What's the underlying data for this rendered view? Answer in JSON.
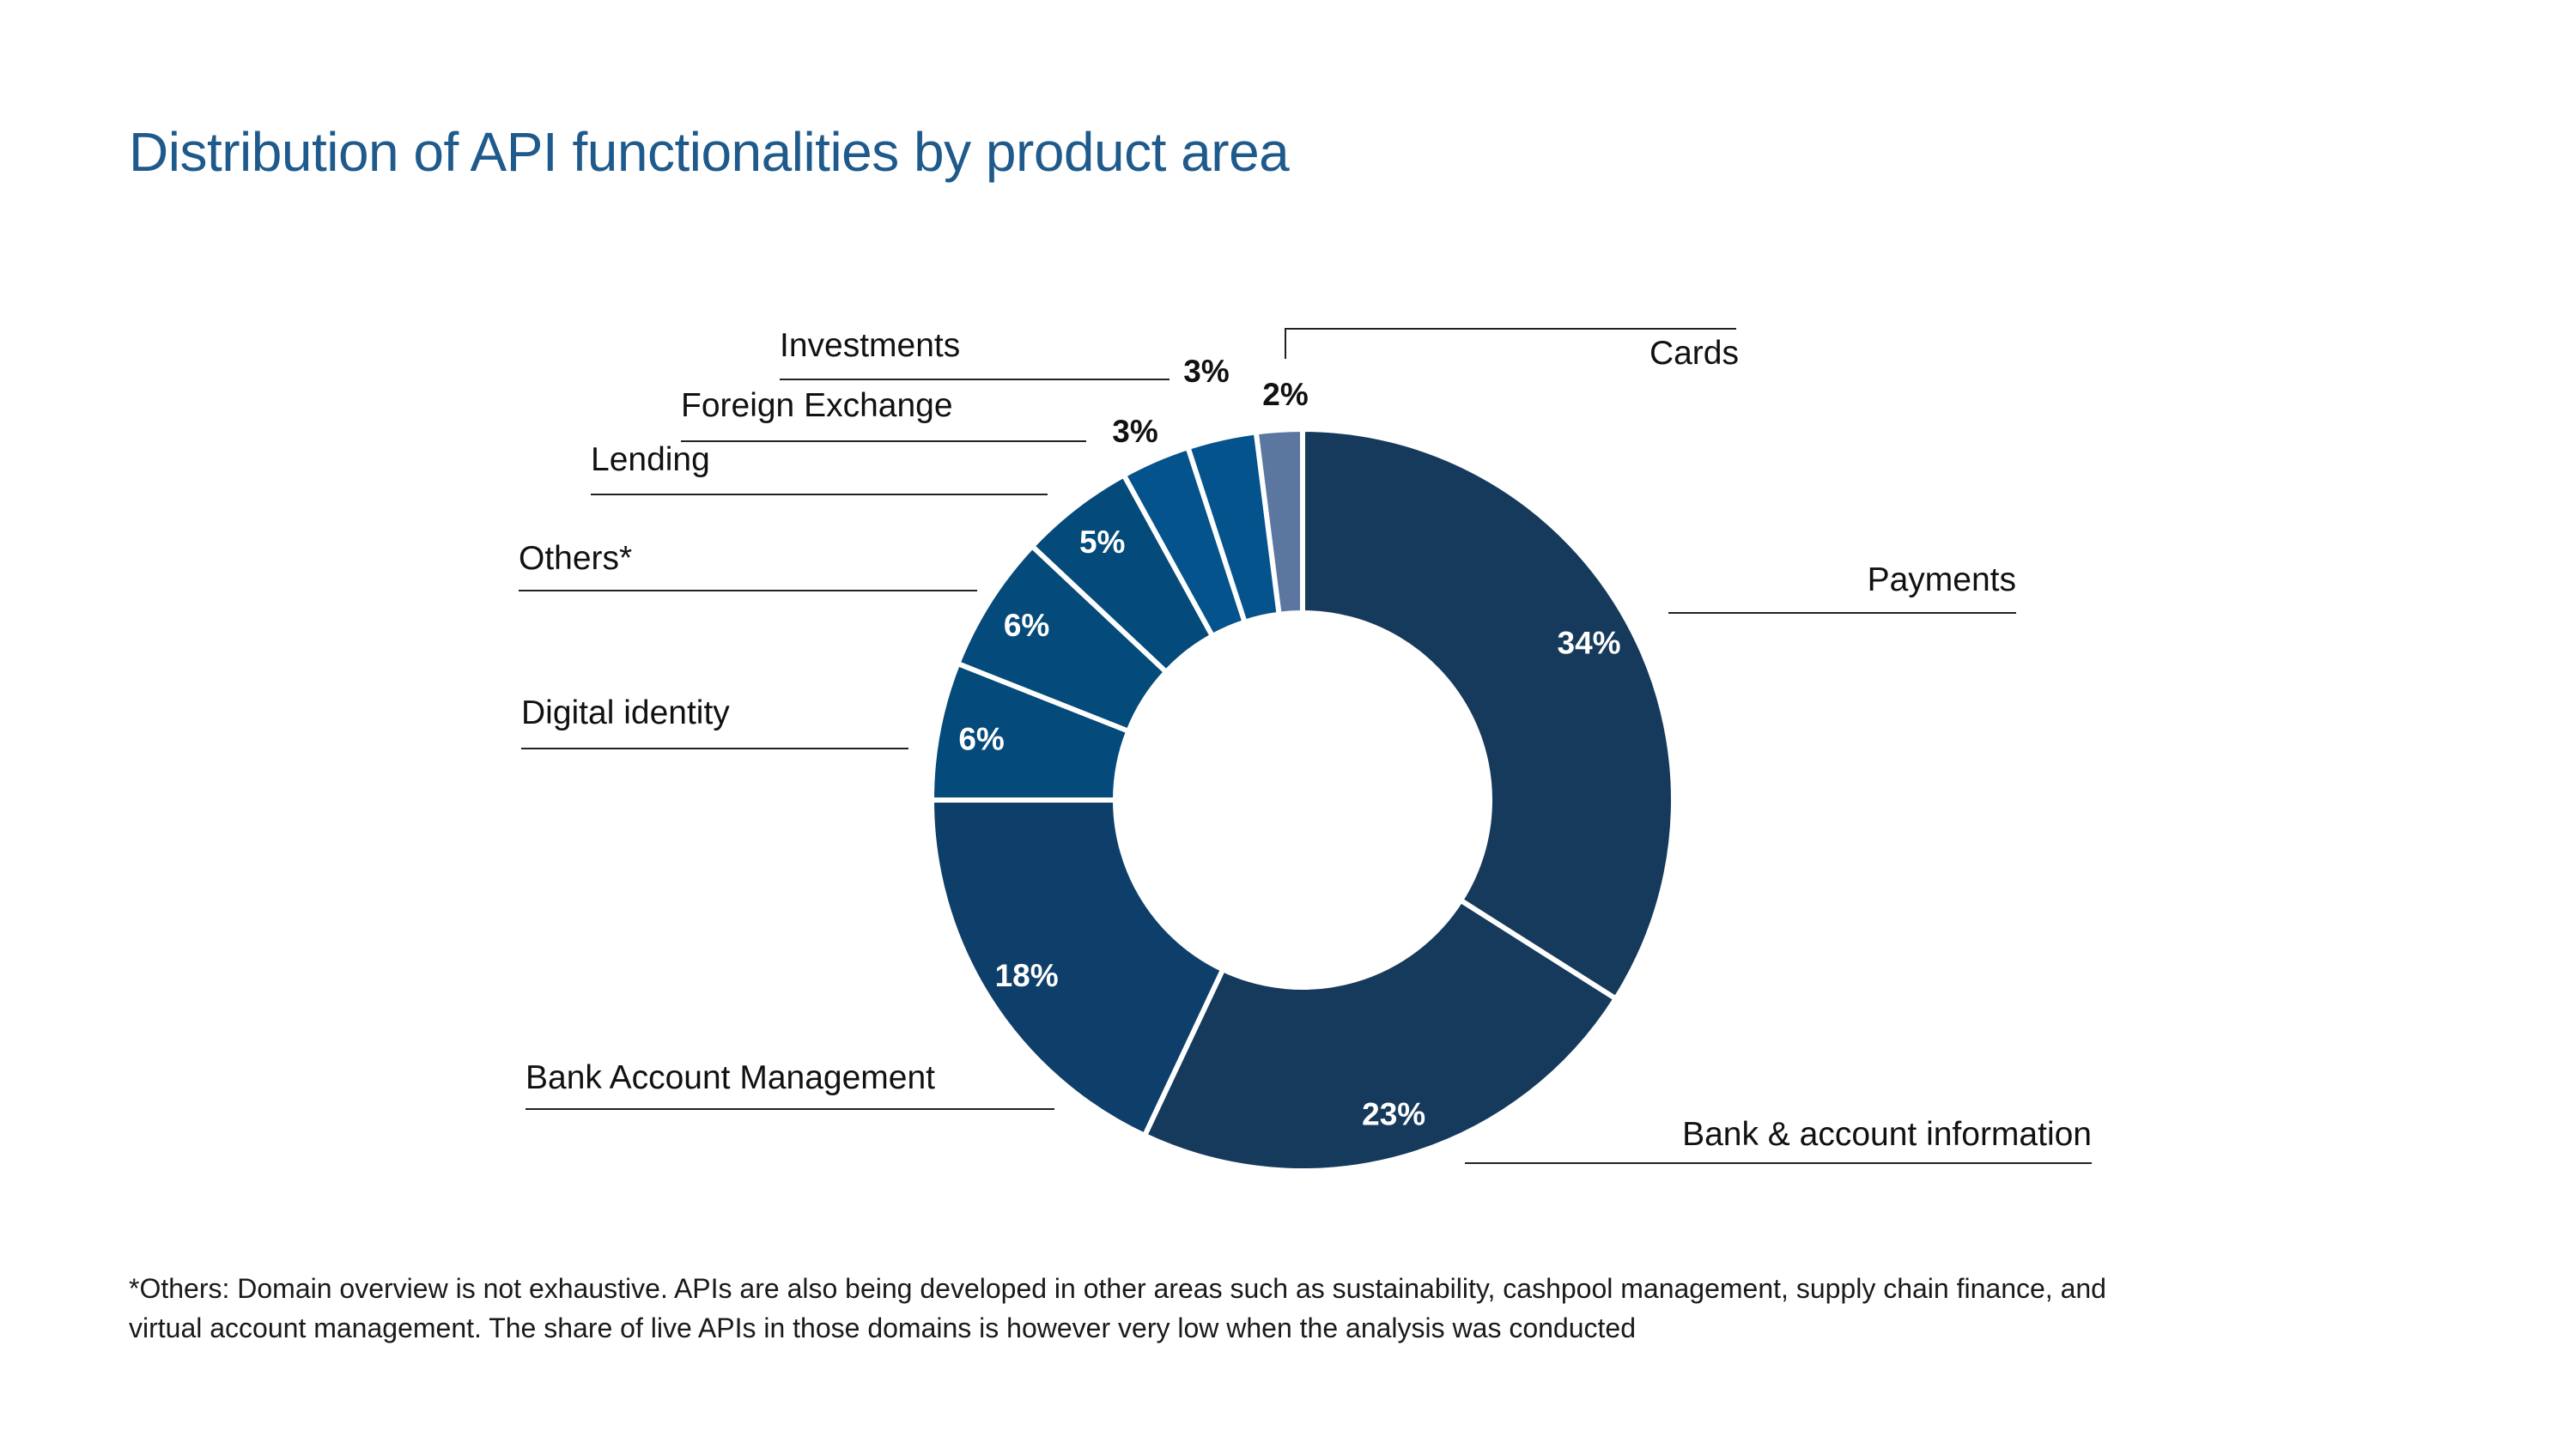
{
  "chart_data": {
    "type": "pie",
    "title": "Distribution of API functionalities by product area",
    "donut": true,
    "slices": [
      {
        "label": "Payments",
        "value": 34,
        "display": "34%",
        "color": "#163a5c"
      },
      {
        "label": "Bank & account information",
        "value": 23,
        "display": "23%",
        "color": "#163a5c"
      },
      {
        "label": "Bank Account Management",
        "value": 18,
        "display": "18%",
        "color": "#0e3f6a"
      },
      {
        "label": "Digital identity",
        "value": 6,
        "display": "6%",
        "color": "#044a7a"
      },
      {
        "label": "Others*",
        "value": 6,
        "display": "6%",
        "color": "#044a7a"
      },
      {
        "label": "Lending",
        "value": 5,
        "display": "5%",
        "color": "#044a7a"
      },
      {
        "label": "Foreign Exchange",
        "value": 3,
        "display": "3%",
        "color": "#04538c"
      },
      {
        "label": "Investments",
        "value": 3,
        "display": "3%",
        "color": "#04538c"
      },
      {
        "label": "Cards",
        "value": 2,
        "display": "2%",
        "color": "#5b779f"
      }
    ]
  },
  "footnote": {
    "line1": "*Others: Domain overview is not exhaustive. APIs are also being developed in other areas such as sustainability, cashpool management, supply chain finance, and",
    "line2": "virtual account management. The share of live APIs in those domains is however very low when the analysis was conducted"
  }
}
